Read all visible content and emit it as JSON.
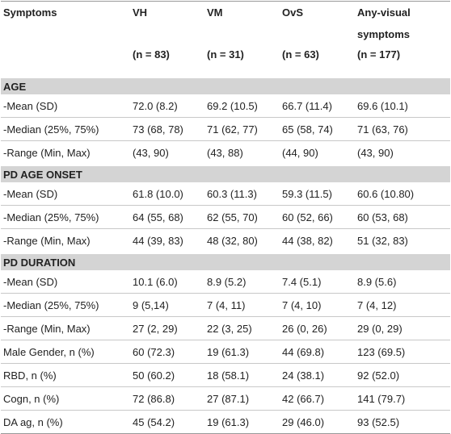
{
  "table": {
    "columns": [
      {
        "name": "Symptoms"
      },
      {
        "name": "VH",
        "n": "(n = 83)"
      },
      {
        "name": "VM",
        "n": "(n = 31)"
      },
      {
        "name": "OvS",
        "n": "(n = 63)"
      },
      {
        "name": "Any-visual symptoms",
        "n": "(n = 177)"
      }
    ],
    "sections": [
      {
        "title": "AGE",
        "rows": [
          [
            "-Mean (SD)",
            "72.0 (8.2)",
            "69.2 (10.5)",
            "66.7 (11.4)",
            "69.6 (10.1)"
          ],
          [
            "-Median (25%, 75%)",
            "73 (68, 78)",
            "71 (62, 77)",
            "65 (58, 74)",
            "71 (63, 76)"
          ],
          [
            "-Range (Min, Max)",
            "(43, 90)",
            "(43, 88)",
            "(44, 90)",
            "(43, 90)"
          ]
        ]
      },
      {
        "title": "PD AGE ONSET",
        "rows": [
          [
            "-Mean (SD)",
            "61.8 (10.0)",
            "60.3 (11.3)",
            "59.3 (11.5)",
            "60.6 (10.80)"
          ],
          [
            "-Median (25%, 75%)",
            "64 (55, 68)",
            "62 (55, 70)",
            "60 (52, 66)",
            "60 (53, 68)"
          ],
          [
            "-Range (Min, Max)",
            "44 (39, 83)",
            "48 (32, 80)",
            "44 (38, 82)",
            "51 (32, 83)"
          ]
        ]
      },
      {
        "title": "PD DURATION",
        "rows": [
          [
            "-Mean (SD)",
            "10.1 (6.0)",
            "8.9 (5.2)",
            "7.4 (5.1)",
            "8.9 (5.6)"
          ],
          [
            "-Median (25%, 75%)",
            "9 (5,14)",
            "7 (4, 11)",
            "7 (4, 10)",
            "7 (4, 12)"
          ],
          [
            "-Range (Min, Max)",
            "27 (2, 29)",
            "22 (3, 25)",
            "26 (0, 26)",
            "29 (0, 29)"
          ],
          [
            "Male Gender, n (%)",
            "60 (72.3)",
            "19 (61.3)",
            "44 (69.8)",
            "123 (69.5)"
          ],
          [
            "RBD, n (%)",
            "50 (60.2)",
            "18 (58.1)",
            "24 (38.1)",
            "92 (52.0)"
          ],
          [
            "Cogn, n (%)",
            "72 (86.8)",
            "27 (87.1)",
            "42 (66.7)",
            "141 (79.7)"
          ],
          [
            "DA ag, n (%)",
            "45 (54.2)",
            "19 (61.3)",
            "29 (46.0)",
            "93 (52.5)"
          ]
        ]
      }
    ]
  }
}
